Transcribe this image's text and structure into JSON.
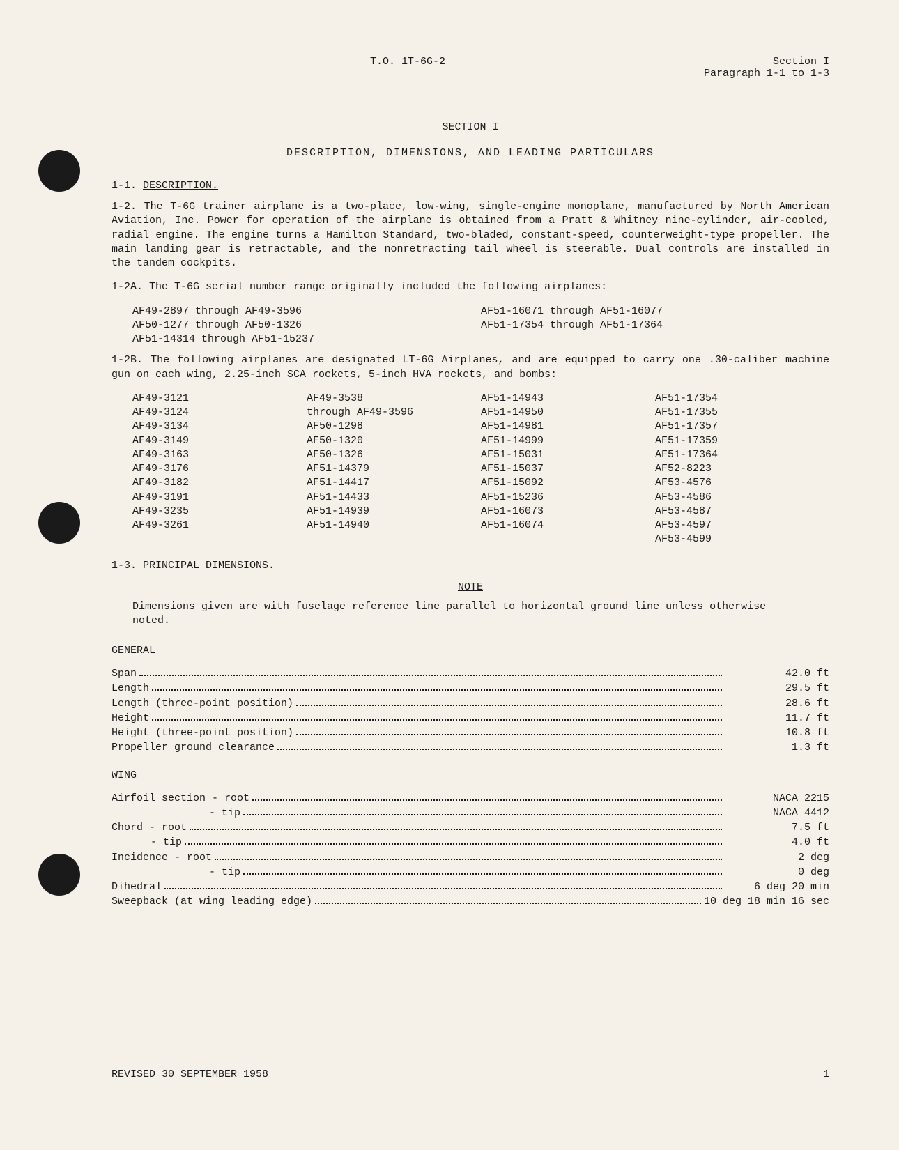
{
  "header": {
    "doc_id": "T.O. 1T-6G-2",
    "section": "Section I",
    "paragraph_range": "Paragraph 1-1 to 1-3"
  },
  "section": {
    "title": "SECTION I",
    "subtitle": "DESCRIPTION, DIMENSIONS, AND LEADING PARTICULARS"
  },
  "para_1_1": {
    "heading_num": "1-1.",
    "heading_text": "DESCRIPTION."
  },
  "para_1_2": {
    "label": "1-2.",
    "text": "The T-6G trainer airplane is a two-place, low-wing, single-engine monoplane, manufactured by North American Aviation, Inc. Power for operation of the airplane is obtained from a Pratt & Whitney nine-cylinder, air-cooled, radial engine. The engine turns a Hamilton Standard, two-bladed, constant-speed, counterweight-type propeller. The main landing gear is retractable, and the nonretracting tail wheel is steerable. Dual controls are installed in the tandem cockpits."
  },
  "para_1_2A": {
    "label": "1-2A.",
    "text": "The T-6G serial number range originally included the following airplanes:",
    "col1": [
      "AF49-2897 through AF49-3596",
      "AF50-1277 through AF50-1326",
      "AF51-14314 through AF51-15237"
    ],
    "col2": [
      "AF51-16071 through AF51-16077",
      "AF51-17354 through AF51-17364"
    ]
  },
  "para_1_2B": {
    "label": "1-2B.",
    "text": "The following airplanes are designated LT-6G Airplanes, and are equipped to carry one .30-caliber machine gun on each wing, 2.25-inch SCA rockets, 5-inch HVA rockets, and bombs:",
    "col1": [
      "AF49-3121",
      "AF49-3124",
      "AF49-3134",
      "AF49-3149",
      "AF49-3163",
      "AF49-3176",
      "AF49-3182",
      "AF49-3191",
      "AF49-3235",
      "AF49-3261"
    ],
    "col2": [
      "AF49-3538",
      "through AF49-3596",
      "AF50-1298",
      "AF50-1320",
      "AF50-1326",
      "AF51-14379",
      "AF51-14417",
      "AF51-14433",
      "AF51-14939",
      "AF51-14940"
    ],
    "col3": [
      "AF51-14943",
      "AF51-14950",
      "AF51-14981",
      "AF51-14999",
      "AF51-15031",
      "AF51-15037",
      "AF51-15092",
      "AF51-15236",
      "AF51-16073",
      "AF51-16074"
    ],
    "col4": [
      "AF51-17354",
      "AF51-17355",
      "AF51-17357",
      "AF51-17359",
      "AF51-17364",
      "AF52-8223",
      "AF53-4576",
      "AF53-4586",
      "AF53-4587",
      "AF53-4597",
      "AF53-4599"
    ]
  },
  "para_1_3": {
    "heading_num": "1-3.",
    "heading_text": "PRINCIPAL DIMENSIONS."
  },
  "note": {
    "title": "NOTE",
    "text": "Dimensions given are with fuselage reference line parallel to horizontal ground line unless otherwise noted."
  },
  "groups": {
    "general": {
      "title": "GENERAL",
      "rows": [
        {
          "label": "Span",
          "value": "42.0 ft",
          "indent": ""
        },
        {
          "label": "Length",
          "value": "29.5 ft",
          "indent": ""
        },
        {
          "label": "Length (three-point position)",
          "value": "28.6 ft",
          "indent": ""
        },
        {
          "label": "Height",
          "value": "11.7 ft",
          "indent": ""
        },
        {
          "label": "Height (three-point position)",
          "value": "10.8 ft",
          "indent": ""
        },
        {
          "label": "Propeller ground clearance",
          "value": "1.3 ft",
          "indent": ""
        }
      ]
    },
    "wing": {
      "title": "WING",
      "rows": [
        {
          "label": "Airfoil section - root",
          "value": "NACA 2215",
          "indent": ""
        },
        {
          "label": "- tip",
          "value": "NACA 4412",
          "indent": "indent1"
        },
        {
          "label": "Chord - root",
          "value": "7.5 ft",
          "indent": ""
        },
        {
          "label": "- tip",
          "value": "4.0 ft",
          "indent": "indent-chord"
        },
        {
          "label": "Incidence - root",
          "value": "2 deg",
          "indent": ""
        },
        {
          "label": "- tip",
          "value": "0 deg",
          "indent": "indent1"
        },
        {
          "label": "Dihedral",
          "value": "6 deg 20 min",
          "indent": ""
        },
        {
          "label": "Sweepback (at wing leading edge)",
          "value": "10 deg 18 min 16 sec",
          "indent": ""
        }
      ]
    }
  },
  "footer": {
    "revision": "REVISED 30 SEPTEMBER 1958",
    "page": "1"
  },
  "holes": [
    215,
    720,
    1225
  ]
}
